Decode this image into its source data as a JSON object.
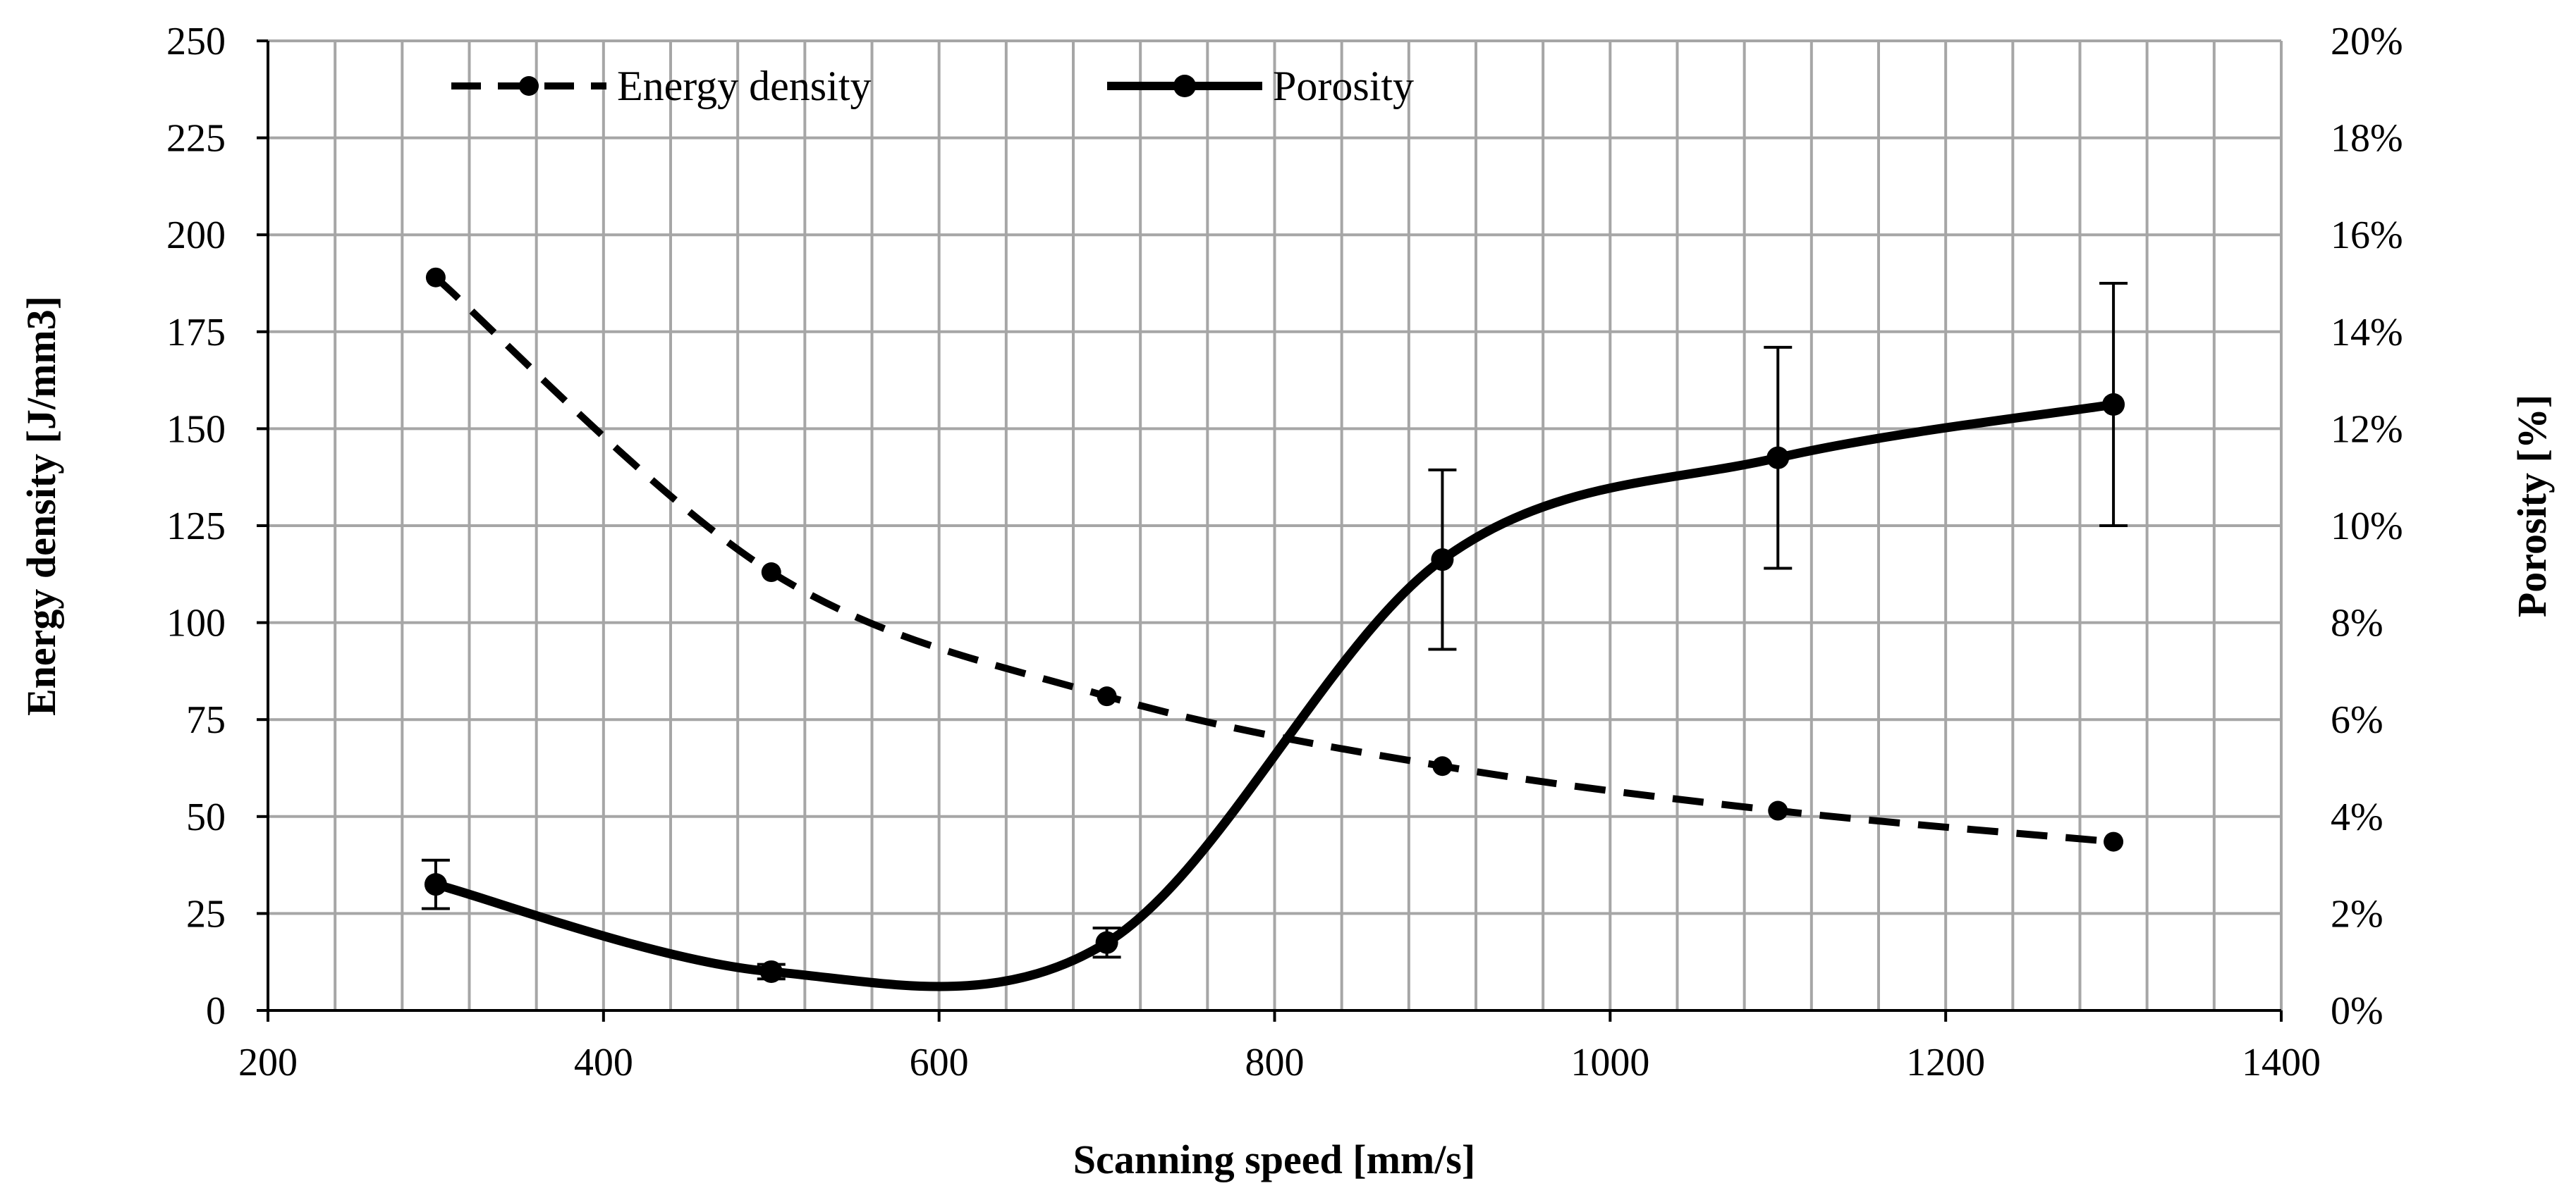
{
  "chart_data": {
    "type": "line",
    "title": "",
    "xlabel": "Scanning speed [mm/s]",
    "ylabel_left": "Energy density [J/mm3]",
    "ylabel_right": "Porosity [%]",
    "xlim": [
      200,
      1400
    ],
    "ylim_left": [
      0,
      250
    ],
    "ylim_right": [
      0,
      20
    ],
    "x_ticks": [
      200,
      400,
      600,
      800,
      1000,
      1200,
      1400
    ],
    "x_tick_labels": [
      "200",
      "400",
      "600",
      "800",
      "1000",
      "1200",
      "1400"
    ],
    "y_left_ticks": [
      0,
      25,
      50,
      75,
      100,
      125,
      150,
      175,
      200,
      225,
      250
    ],
    "y_left_tick_labels": [
      "0",
      "25",
      "50",
      "75",
      "100",
      "125",
      "150",
      "175",
      "200",
      "225",
      "250"
    ],
    "y_right_ticks": [
      0,
      2,
      4,
      6,
      8,
      10,
      12,
      14,
      16,
      18,
      20
    ],
    "y_right_tick_labels": [
      "0%",
      "2%",
      "4%",
      "6%",
      "8%",
      "10%",
      "12%",
      "14%",
      "16%",
      "18%",
      "20%"
    ],
    "x_minor_step": 40,
    "grid": true,
    "legend_position": "top",
    "series": [
      {
        "name": "Energy density",
        "axis": "left",
        "style": "dashed",
        "x": [
          300,
          500,
          700,
          900,
          1100,
          1300
        ],
        "values": [
          189,
          113,
          81,
          63,
          51.5,
          43.5
        ]
      },
      {
        "name": "Porosity",
        "axis": "right",
        "style": "solid",
        "unit": "%",
        "x": [
          300,
          500,
          700,
          900,
          1100,
          1300
        ],
        "values": [
          2.6,
          0.8,
          1.4,
          9.3,
          11.4,
          12.5
        ],
        "error": [
          0.5,
          0.15,
          0.3,
          1.85,
          2.28,
          2.5
        ]
      }
    ],
    "colors": {
      "line": "#000000",
      "grid": "#a6a6a6",
      "axis": "#000000"
    }
  }
}
